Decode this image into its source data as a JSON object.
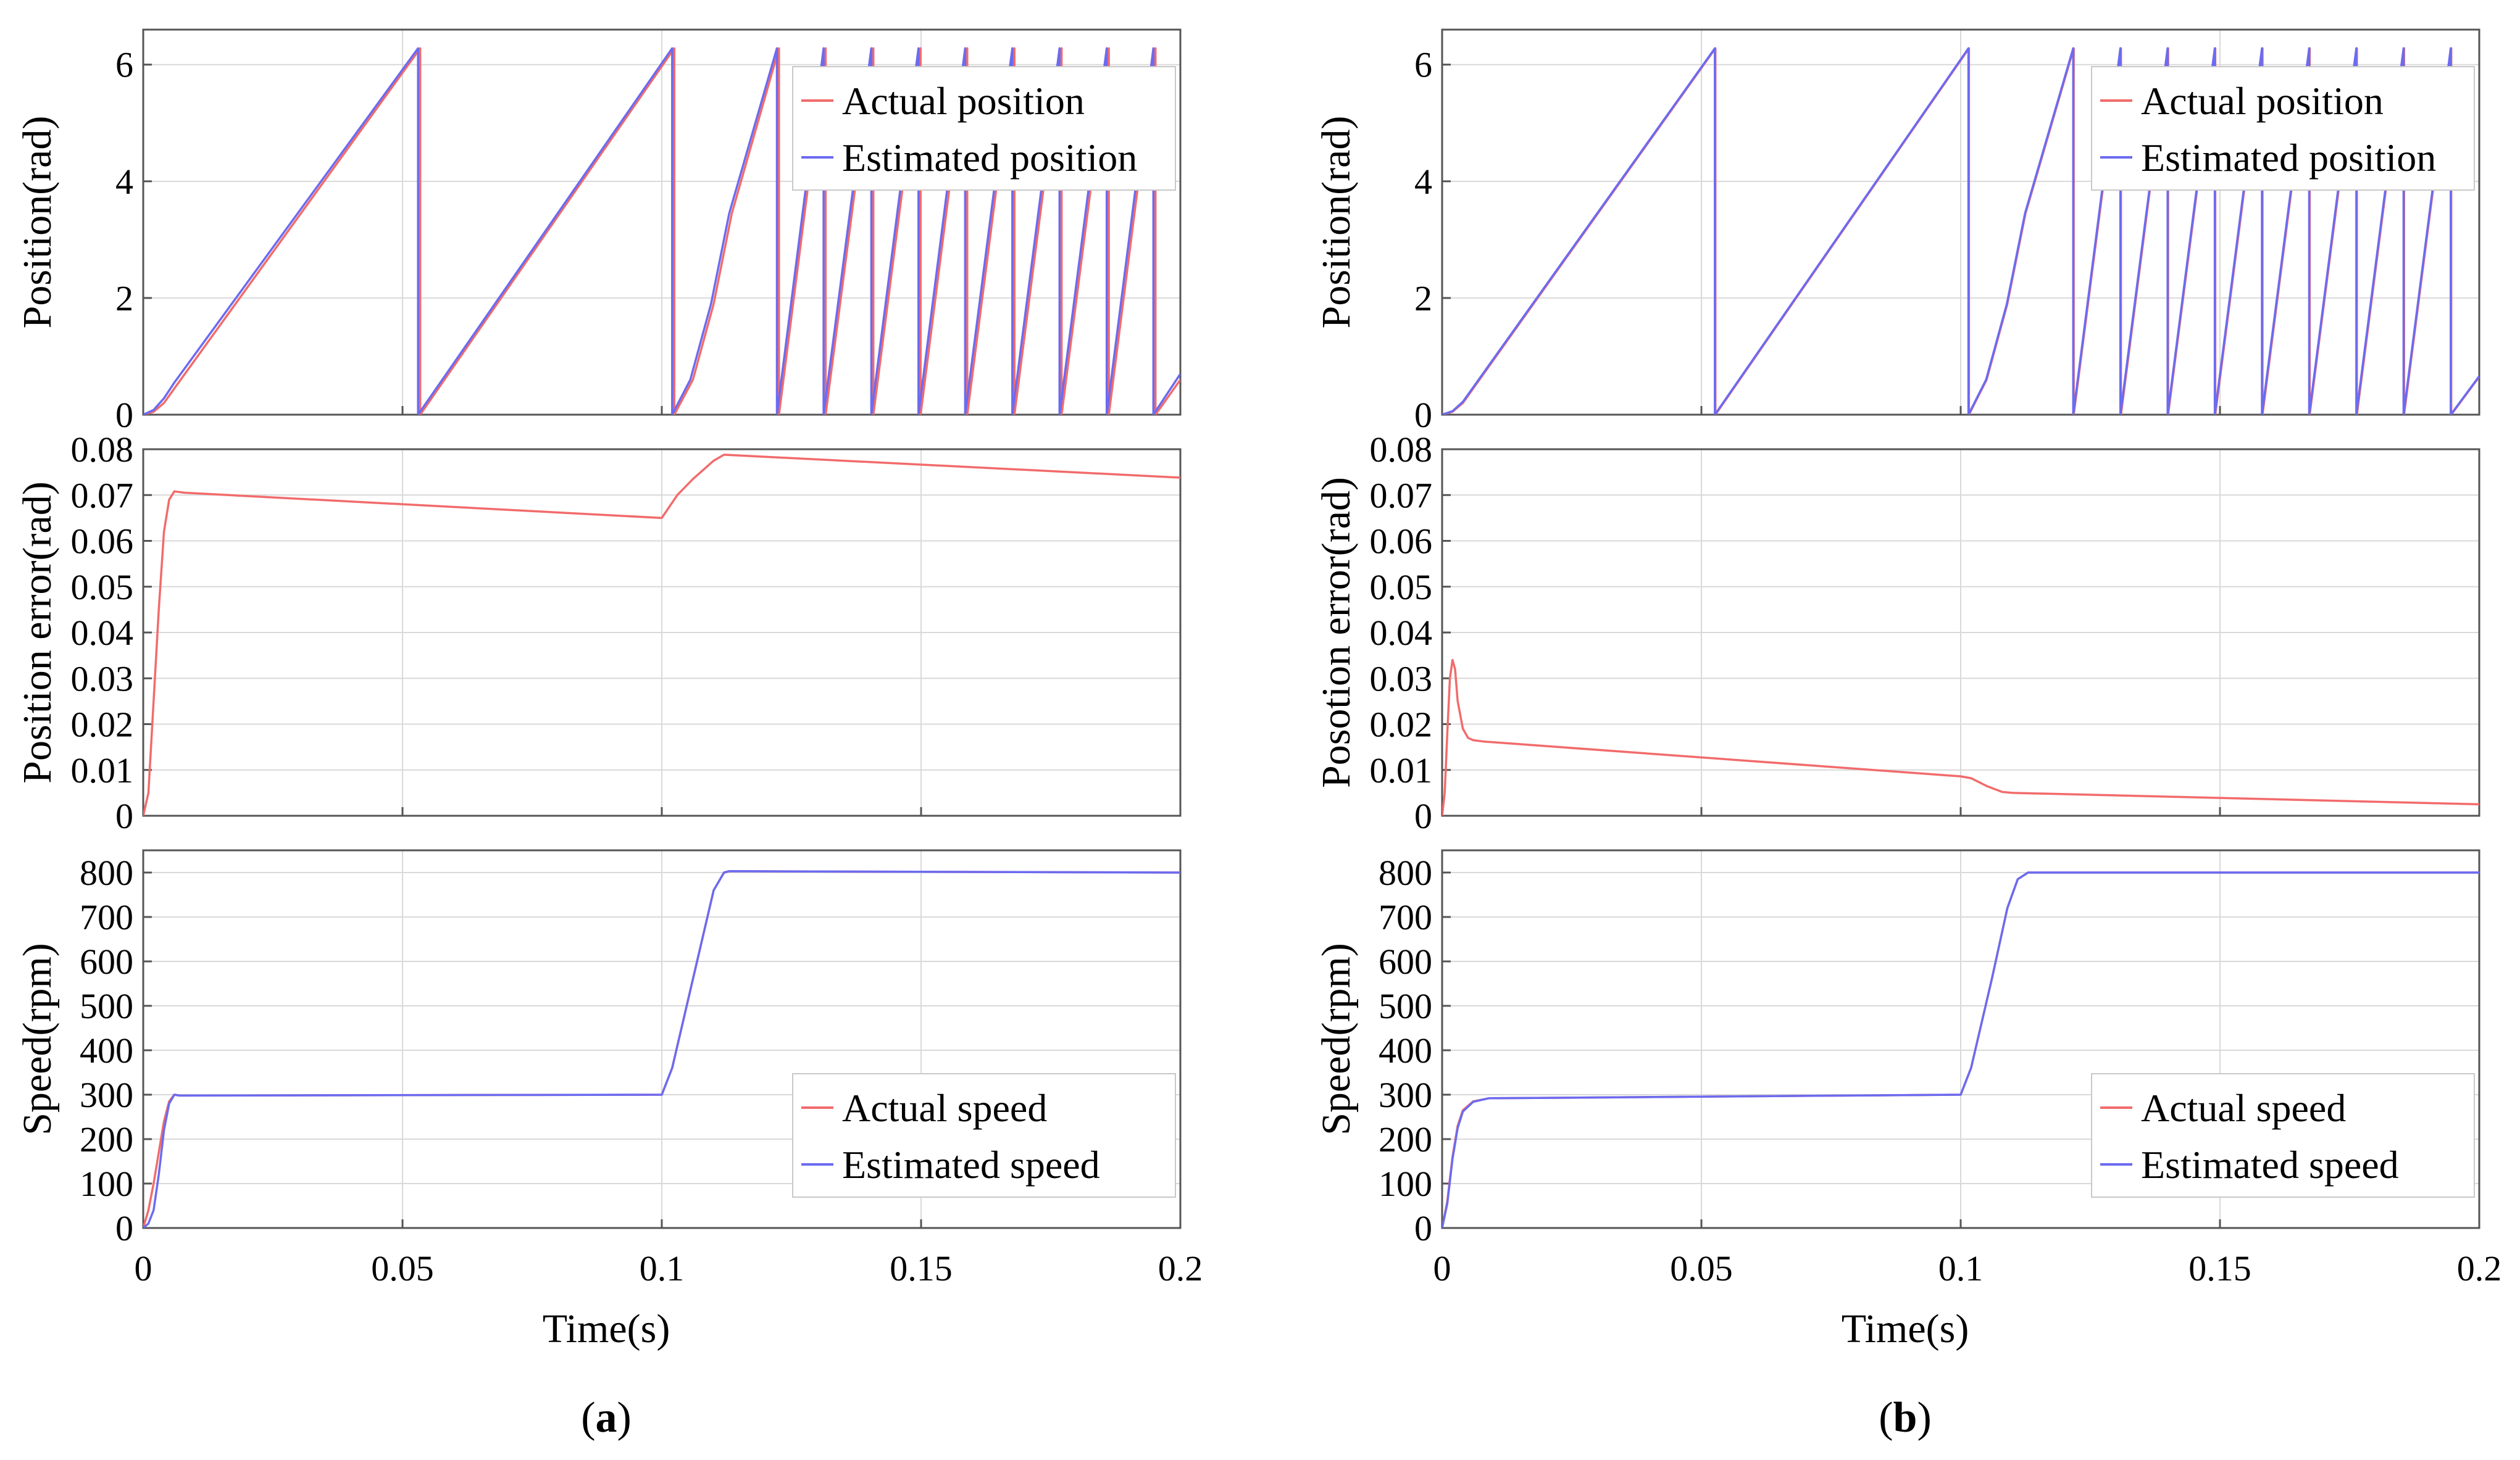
{
  "colors": {
    "actual": "#f26b6b",
    "estimated": "#6b6bf0",
    "grid": "#d9d9d9",
    "axis": "#555555",
    "legend_border": "#c8c8c8"
  },
  "shared": {
    "xlabel": "Time(s)",
    "x_ticks": [
      "0",
      "0.05",
      "0.1",
      "0.15",
      "0.2"
    ]
  },
  "chart_data": [
    {
      "panel": "a",
      "caption_open": "(",
      "caption_letter": "a",
      "caption_close": ")",
      "subplots": [
        {
          "type": "line",
          "ylabel": "Position(rad)",
          "xlim": [
            0,
            0.2
          ],
          "ylim": [
            0,
            6.6
          ],
          "y_ticks": [
            "0",
            "2",
            "4",
            "6"
          ],
          "legend": [
            "Actual position",
            "Estimated position"
          ],
          "legend_position": "top-right",
          "series": [
            {
              "name": "Actual position",
              "x": [
                0,
                0.002,
                0.004,
                0.006,
                0.0534,
                0.0534,
                0.1024,
                0.1024,
                0.106,
                0.11,
                0.1135,
                0.1226,
                0.1226,
                0.1316,
                0.1316,
                0.1408,
                0.1408,
                0.1499,
                0.1499,
                0.1589,
                0.1589,
                0.168,
                0.168,
                0.1771,
                0.1771,
                0.1862,
                0.1862,
                0.1952,
                0.1952,
                0.2
              ],
              "y": [
                0,
                0.05,
                0.2,
                0.45,
                6.28,
                0,
                6.28,
                0,
                0.6,
                1.9,
                3.45,
                6.28,
                0,
                6.28,
                0,
                6.28,
                0,
                6.28,
                0,
                6.28,
                0,
                6.28,
                0,
                6.28,
                0,
                6.28,
                0,
                6.28,
                0,
                0.6
              ]
            },
            {
              "name": "Estimated position",
              "x": [
                0,
                0.002,
                0.004,
                0.006,
                0.053,
                0.053,
                0.102,
                0.102,
                0.1055,
                0.1095,
                0.113,
                0.1222,
                0.1222,
                0.1312,
                0.1312,
                0.1404,
                0.1404,
                0.1495,
                0.1495,
                0.1585,
                0.1585,
                0.1676,
                0.1676,
                0.1767,
                0.1767,
                0.1858,
                0.1858,
                0.1948,
                0.1948,
                0.2
              ],
              "y": [
                0,
                0.08,
                0.28,
                0.55,
                6.28,
                0,
                6.28,
                0,
                0.6,
                1.9,
                3.45,
                6.28,
                0,
                6.28,
                0,
                6.28,
                0,
                6.28,
                0,
                6.28,
                0,
                6.28,
                0,
                6.28,
                0,
                6.28,
                0,
                6.28,
                0,
                0.7
              ]
            }
          ]
        },
        {
          "type": "line",
          "ylabel": "Position error(rad)",
          "xlim": [
            0,
            0.2
          ],
          "ylim": [
            0,
            0.08
          ],
          "y_ticks": [
            "0",
            "0.01",
            "0.02",
            "0.03",
            "0.04",
            "0.05",
            "0.06",
            "0.07",
            "0.08"
          ],
          "series": [
            {
              "name": "Position error",
              "x": [
                0,
                0.001,
                0.002,
                0.003,
                0.004,
                0.005,
                0.006,
                0.008,
                0.1,
                0.103,
                0.106,
                0.11,
                0.112,
                0.2
              ],
              "y": [
                0,
                0.005,
                0.025,
                0.045,
                0.062,
                0.069,
                0.0708,
                0.0705,
                0.065,
                0.07,
                0.0735,
                0.0775,
                0.0788,
                0.0738
              ]
            }
          ]
        },
        {
          "type": "line",
          "ylabel": "Speed(rpm)",
          "xlim": [
            0,
            0.2
          ],
          "ylim": [
            0,
            850
          ],
          "y_ticks": [
            "0",
            "100",
            "200",
            "300",
            "400",
            "500",
            "600",
            "700",
            "800"
          ],
          "legend": [
            "Actual speed",
            "Estimated speed"
          ],
          "legend_position": "bottom-right",
          "series": [
            {
              "name": "Actual speed",
              "x": [
                0,
                0.001,
                0.002,
                0.003,
                0.004,
                0.005,
                0.006,
                0.007,
                0.1,
                0.102,
                0.106,
                0.11,
                0.112,
                0.113,
                0.2
              ],
              "y": [
                0,
                40,
                100,
                170,
                240,
                285,
                300,
                298,
                300,
                360,
                560,
                760,
                800,
                803,
                800
              ]
            },
            {
              "name": "Estimated speed",
              "x": [
                0,
                0.001,
                0.002,
                0.003,
                0.004,
                0.005,
                0.006,
                0.007,
                0.1,
                0.102,
                0.106,
                0.11,
                0.112,
                0.113,
                0.2
              ],
              "y": [
                0,
                10,
                40,
                120,
                220,
                280,
                300,
                298,
                300,
                360,
                560,
                760,
                800,
                803,
                800
              ]
            }
          ]
        }
      ]
    },
    {
      "panel": "b",
      "caption_open": "(",
      "caption_letter": "b",
      "caption_close": ")",
      "subplots": [
        {
          "type": "line",
          "ylabel": "Position(rad)",
          "xlim": [
            0,
            0.2
          ],
          "ylim": [
            0,
            6.6
          ],
          "y_ticks": [
            "0",
            "2",
            "4",
            "6"
          ],
          "legend": [
            "Actual position",
            "Estimated position"
          ],
          "legend_position": "top-right",
          "series": [
            {
              "name": "Actual position",
              "x": [
                0,
                0.002,
                0.004,
                0.006,
                0.0527,
                0.0527,
                0.1016,
                0.1016,
                0.105,
                0.109,
                0.1125,
                0.1218,
                0.1218,
                0.1309,
                0.1309,
                0.14,
                0.14,
                0.1491,
                0.1491,
                0.1582,
                0.1582,
                0.1673,
                0.1673,
                0.1764,
                0.1764,
                0.1855,
                0.1855,
                0.1946,
                0.1946,
                0.2
              ],
              "y": [
                0,
                0.05,
                0.2,
                0.45,
                6.28,
                0,
                6.28,
                0,
                0.6,
                1.9,
                3.45,
                6.28,
                0,
                6.28,
                0,
                6.28,
                0,
                6.28,
                0,
                6.28,
                0,
                6.28,
                0,
                6.28,
                0,
                6.28,
                0,
                6.28,
                0,
                0.65
              ]
            },
            {
              "name": "Estimated position",
              "x": [
                0,
                0.002,
                0.004,
                0.006,
                0.0526,
                0.0526,
                0.1015,
                0.1015,
                0.1049,
                0.1089,
                0.1124,
                0.1217,
                0.1217,
                0.1308,
                0.1308,
                0.1399,
                0.1399,
                0.149,
                0.149,
                0.1581,
                0.1581,
                0.1672,
                0.1672,
                0.1763,
                0.1763,
                0.1854,
                0.1854,
                0.1945,
                0.1945,
                0.2
              ],
              "y": [
                0,
                0.06,
                0.22,
                0.47,
                6.28,
                0,
                6.28,
                0,
                0.6,
                1.9,
                3.45,
                6.28,
                0,
                6.28,
                0,
                6.28,
                0,
                6.28,
                0,
                6.28,
                0,
                6.28,
                0,
                6.28,
                0,
                6.28,
                0,
                6.28,
                0,
                0.66
              ]
            }
          ]
        },
        {
          "type": "line",
          "ylabel": "Posotion error(rad)",
          "xlim": [
            0,
            0.2
          ],
          "ylim": [
            0,
            0.08
          ],
          "y_ticks": [
            "0",
            "0.01",
            "0.02",
            "0.03",
            "0.04",
            "0.05",
            "0.06",
            "0.07",
            "0.08"
          ],
          "series": [
            {
              "name": "Position error",
              "x": [
                0,
                0.0005,
                0.001,
                0.0015,
                0.002,
                0.0025,
                0.003,
                0.004,
                0.005,
                0.006,
                0.008,
                0.1,
                0.102,
                0.105,
                0.108,
                0.11,
                0.2
              ],
              "y": [
                0,
                0.005,
                0.018,
                0.03,
                0.034,
                0.032,
                0.025,
                0.019,
                0.017,
                0.0165,
                0.0162,
                0.0086,
                0.0082,
                0.0065,
                0.0052,
                0.005,
                0.0025
              ]
            }
          ]
        },
        {
          "type": "line",
          "ylabel": "Speed(rpm)",
          "xlim": [
            0,
            0.2
          ],
          "ylim": [
            0,
            850
          ],
          "y_ticks": [
            "0",
            "100",
            "200",
            "300",
            "400",
            "500",
            "600",
            "700",
            "800"
          ],
          "legend": [
            "Actual speed",
            "Estimated speed"
          ],
          "legend_position": "bottom-right",
          "series": [
            {
              "name": "Actual speed",
              "x": [
                0,
                0.001,
                0.002,
                0.003,
                0.004,
                0.006,
                0.009,
                0.1,
                0.102,
                0.106,
                0.109,
                0.111,
                0.113,
                0.2
              ],
              "y": [
                0,
                60,
                160,
                230,
                265,
                285,
                292,
                300,
                360,
                560,
                720,
                785,
                800,
                800
              ]
            },
            {
              "name": "Estimated speed",
              "x": [
                0,
                0.001,
                0.002,
                0.003,
                0.004,
                0.006,
                0.009,
                0.1,
                0.102,
                0.106,
                0.109,
                0.111,
                0.113,
                0.2
              ],
              "y": [
                0,
                55,
                155,
                225,
                262,
                284,
                292,
                300,
                360,
                560,
                720,
                785,
                800,
                800
              ]
            }
          ]
        }
      ]
    }
  ]
}
